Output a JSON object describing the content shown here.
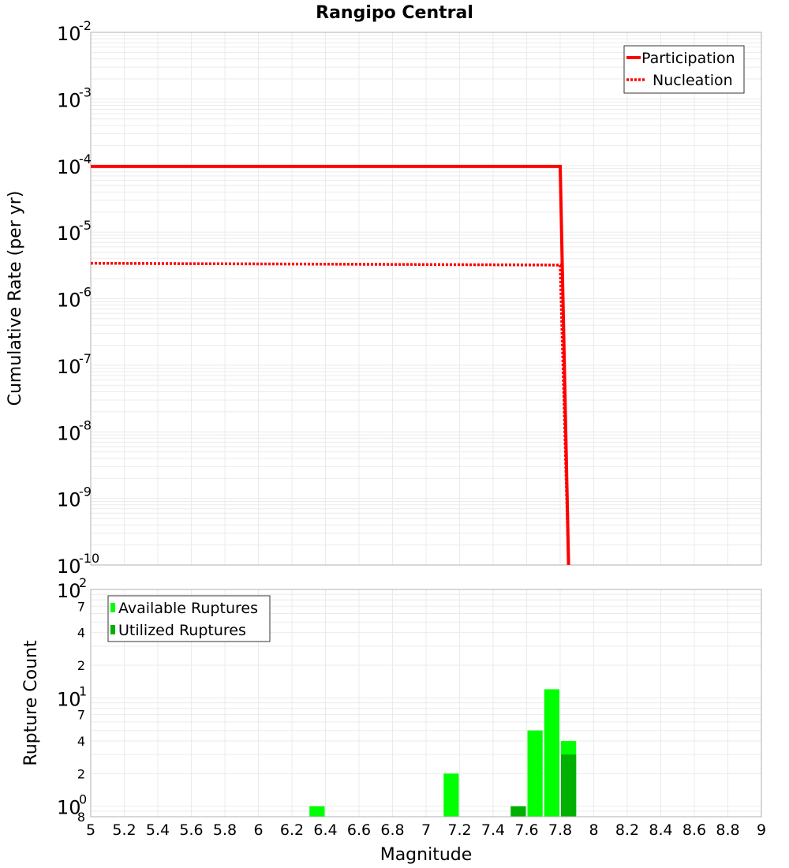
{
  "chart_data": [
    {
      "type": "line",
      "title": "Rangipo Central",
      "xlabel": "",
      "ylabel": "Cumulative Rate (per yr)",
      "yscale": "log",
      "xlim": [
        5,
        9
      ],
      "ylim": [
        1e-10,
        0.01
      ],
      "y_ticks": [
        "10^-2",
        "10^-3",
        "10^-4",
        "10^-5",
        "10^-6",
        "10^-7",
        "10^-8",
        "10^-9",
        "10^-10"
      ],
      "grid": true,
      "legend_position": "top-right",
      "series": [
        {
          "name": "Participation",
          "style": "solid",
          "color": "#ff0000",
          "x": [
            5.0,
            7.8,
            7.85
          ],
          "y": [
            9.7e-05,
            9.7e-05,
            1e-10
          ]
        },
        {
          "name": "Nucleation",
          "style": "dotted",
          "color": "#ff0000",
          "x": [
            5.0,
            7.8,
            7.85
          ],
          "y": [
            3.4e-06,
            3.2e-06,
            1e-10
          ]
        }
      ]
    },
    {
      "type": "bar",
      "title": "",
      "xlabel": "Magnitude",
      "ylabel": "Rupture Count",
      "yscale": "log",
      "xlim": [
        5,
        9
      ],
      "ylim": [
        0.8,
        100
      ],
      "x_ticks": [
        "5",
        "5.2",
        "5.4",
        "5.6",
        "5.8",
        "6",
        "6.2",
        "6.4",
        "6.6",
        "6.8",
        "7",
        "7.2",
        "7.4",
        "7.6",
        "7.8",
        "8",
        "8.2",
        "8.4",
        "8.6",
        "8.8",
        "9"
      ],
      "y_ticks": [
        "10^2",
        "7",
        "4",
        "2",
        "10^1",
        "7",
        "4",
        "2",
        "10^0",
        "8"
      ],
      "grid": true,
      "legend_position": "top-left",
      "bin_width": 0.1,
      "series": [
        {
          "name": "Available Ruptures",
          "color": "#00ff00",
          "x": [
            6.35,
            7.15,
            7.65,
            7.75,
            7.85
          ],
          "values": [
            1,
            2,
            5,
            12,
            4
          ]
        },
        {
          "name": "Utilized Ruptures",
          "color": "#00b000",
          "x": [
            7.55,
            7.85
          ],
          "values": [
            1,
            3
          ]
        }
      ]
    }
  ],
  "labels": {
    "title": "Rangipo Central",
    "top_ylabel": "Cumulative Rate (per yr)",
    "bottom_ylabel": "Rupture Count",
    "xlabel": "Magnitude",
    "legend_top": [
      "Participation",
      "Nucleation"
    ],
    "legend_bottom": [
      "Available Ruptures",
      "Utilized Ruptures"
    ]
  },
  "colors": {
    "participation": "#ff0000",
    "nucleation": "#ff0000",
    "available": "#00ff00",
    "utilized": "#00b000",
    "grid": "#ebebeb",
    "axis": "#b0b0b0"
  }
}
